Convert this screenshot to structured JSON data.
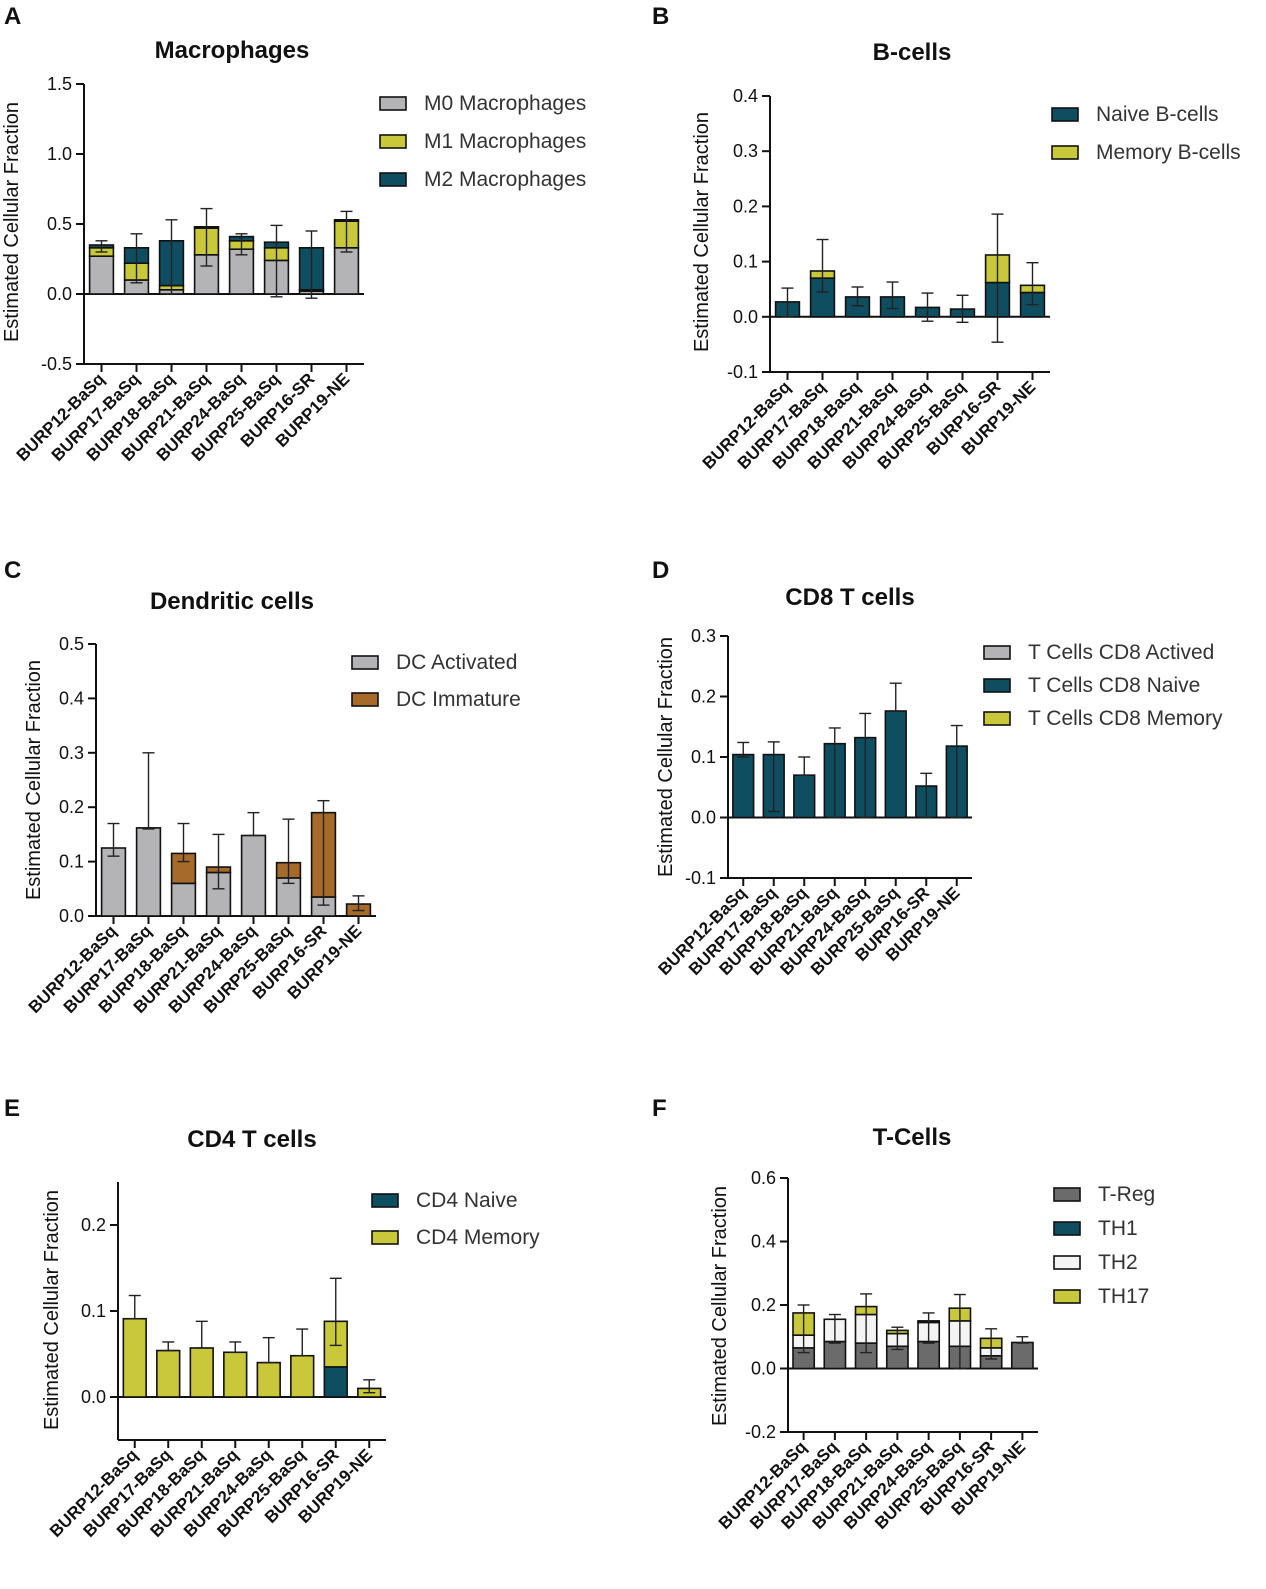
{
  "categories": [
    "BURP12-BaSq",
    "BURP17-BaSq",
    "BURP18-BaSq",
    "BURP21-BaSq",
    "BURP24-BaSq",
    "BURP25-BaSq",
    "BURP16-SR",
    "BURP19-NE"
  ],
  "colors": {
    "gray": "#b4b4b6",
    "yellow": "#c8c83a",
    "teal": "#0f4d60",
    "brown": "#a66a2a",
    "darkgray": "#6b6b6b",
    "white": "#f4f4f4"
  },
  "chart_data": [
    {
      "panel": "A",
      "type": "bar",
      "stacked": true,
      "title": "Macrophages",
      "ylabel": "Estimated Cellular Fraction",
      "xlabel": "",
      "ylim": [
        -0.5,
        1.5
      ],
      "yticks": [
        -0.5,
        0.0,
        0.5,
        1.0,
        1.5
      ],
      "tick_labels": [
        "-0.5",
        "0.0",
        "0.5",
        "1.0",
        "1.5"
      ],
      "legend_position": "top-right",
      "series": [
        {
          "name": "M0 Macrophages",
          "color": "#b4b4b6",
          "values": [
            0.27,
            0.1,
            0.03,
            0.28,
            0.32,
            0.24,
            0.02,
            0.33
          ]
        },
        {
          "name": "M1 Macrophages",
          "color": "#c8c83a",
          "values": [
            0.06,
            0.12,
            0.03,
            0.19,
            0.06,
            0.09,
            0.01,
            0.19
          ]
        },
        {
          "name": "M2 Macrophages",
          "color": "#0f4d60",
          "values": [
            0.02,
            0.11,
            0.32,
            0.01,
            0.03,
            0.04,
            0.3,
            0.01
          ]
        }
      ],
      "error_high": [
        0.38,
        0.43,
        0.53,
        0.61,
        0.43,
        0.49,
        0.45,
        0.59
      ],
      "error_low": [
        0.3,
        0.08,
        0.0,
        0.2,
        0.28,
        -0.02,
        -0.03,
        0.3
      ]
    },
    {
      "panel": "B",
      "type": "bar",
      "stacked": true,
      "title": "B-cells",
      "ylabel": "Estimated Cellular Fraction",
      "xlabel": "",
      "ylim": [
        -0.1,
        0.4
      ],
      "yticks": [
        -0.1,
        0.0,
        0.1,
        0.2,
        0.3,
        0.4
      ],
      "tick_labels": [
        "-0.1",
        "0.0",
        "0.1",
        "0.2",
        "0.3",
        "0.4"
      ],
      "legend_position": "top-right",
      "series": [
        {
          "name": "Naive B-cells",
          "color": "#0f4d60",
          "values": [
            0.027,
            0.07,
            0.036,
            0.036,
            0.017,
            0.014,
            0.062,
            0.044
          ]
        },
        {
          "name": "Memory B-cells",
          "color": "#c8c83a",
          "values": [
            0.0,
            0.013,
            0.0,
            0.0,
            0.0,
            0.0,
            0.05,
            0.013
          ]
        }
      ],
      "error_high": [
        0.052,
        0.14,
        0.054,
        0.063,
        0.043,
        0.039,
        0.186,
        0.098
      ],
      "error_low": [
        0.0,
        0.045,
        0.02,
        0.015,
        -0.008,
        -0.01,
        -0.046,
        0.022
      ]
    },
    {
      "panel": "C",
      "type": "bar",
      "stacked": true,
      "title": "Dendritic cells",
      "ylabel": "Estimated Cellular Fraction",
      "xlabel": "",
      "ylim": [
        0.0,
        0.5
      ],
      "yticks": [
        0.0,
        0.1,
        0.2,
        0.3,
        0.4,
        0.5
      ],
      "tick_labels": [
        "0.0",
        "0.1",
        "0.2",
        "0.3",
        "0.4",
        "0.5"
      ],
      "legend_position": "top-right",
      "series": [
        {
          "name": "DC Activated",
          "color": "#b4b4b6",
          "values": [
            0.125,
            0.162,
            0.06,
            0.08,
            0.148,
            0.07,
            0.035,
            0.0
          ]
        },
        {
          "name": "DC Immature",
          "color": "#a66a2a",
          "values": [
            0.0,
            0.0,
            0.055,
            0.01,
            0.0,
            0.028,
            0.155,
            0.022
          ]
        }
      ],
      "error_high": [
        0.17,
        0.3,
        0.17,
        0.15,
        0.19,
        0.178,
        0.212,
        0.037
      ],
      "error_low": [
        0.11,
        0.16,
        0.1,
        0.05,
        0.148,
        0.06,
        0.02,
        0.01
      ]
    },
    {
      "panel": "D",
      "type": "bar",
      "stacked": true,
      "title": "CD8  T cells",
      "ylabel": "Estimated Cellular Fraction",
      "xlabel": "",
      "ylim": [
        -0.1,
        0.3
      ],
      "yticks": [
        -0.1,
        0.0,
        0.1,
        0.2,
        0.3
      ],
      "tick_labels": [
        "-0.1",
        "0.0",
        "0.1",
        "0.2",
        "0.3"
      ],
      "legend_position": "top-right",
      "series": [
        {
          "name": "T Cells CD8 Actived",
          "color": "#b4b4b6",
          "values": [
            0,
            0,
            0,
            0,
            0,
            0,
            0,
            0
          ]
        },
        {
          "name": "T Cells CD8 Naive",
          "color": "#0f4d60",
          "values": [
            0.104,
            0.104,
            0.07,
            0.122,
            0.132,
            0.176,
            0.052,
            0.118
          ]
        },
        {
          "name": "T Cells CD8 Memory",
          "color": "#c8c83a",
          "values": [
            0,
            0,
            0,
            0,
            0,
            0,
            0,
            0
          ]
        }
      ],
      "error_high": [
        0.124,
        0.125,
        0.1,
        0.148,
        0.172,
        0.222,
        0.073,
        0.152
      ],
      "error_low": [
        0.1,
        0.01,
        0.07,
        0.0,
        0.0,
        0.176,
        0.0,
        0.0
      ]
    },
    {
      "panel": "E",
      "type": "bar",
      "stacked": true,
      "title": "CD4 T cells",
      "ylabel": "Estimated Cellular Fraction",
      "xlabel": "",
      "ylim": [
        -0.05,
        0.25
      ],
      "yticks": [
        0.0,
        0.1,
        0.2
      ],
      "tick_labels": [
        "0.0",
        "0.1",
        "0.2"
      ],
      "legend_position": "top-right",
      "series": [
        {
          "name": "CD4 Naive",
          "color": "#0f4d60",
          "values": [
            0,
            0,
            0,
            0,
            0,
            0,
            0.035,
            0
          ]
        },
        {
          "name": "CD4 Memory",
          "color": "#c8c83a",
          "values": [
            0.091,
            0.054,
            0.057,
            0.052,
            0.04,
            0.048,
            0.053,
            0.01
          ]
        }
      ],
      "error_high": [
        0.118,
        0.064,
        0.088,
        0.064,
        0.069,
        0.079,
        0.138,
        0.02
      ],
      "error_low": [
        0.091,
        0.054,
        0.057,
        0.052,
        0.04,
        0.048,
        0.06,
        0.005
      ]
    },
    {
      "panel": "F",
      "type": "bar",
      "stacked": true,
      "title": "T-Cells",
      "ylabel": "Estimated Cellular Fraction",
      "xlabel": "",
      "ylim": [
        -0.2,
        0.6
      ],
      "yticks": [
        -0.2,
        0.0,
        0.2,
        0.4,
        0.6
      ],
      "tick_labels": [
        "-0.2",
        "0.0",
        "0.2",
        "0.4",
        "0.6"
      ],
      "legend_position": "top-right",
      "series": [
        {
          "name": "T-Reg",
          "color": "#6b6b6b",
          "values": [
            0.065,
            0.085,
            0.08,
            0.07,
            0.085,
            0.07,
            0.04,
            0.082
          ]
        },
        {
          "name": "TH1",
          "color": "#0f4d60",
          "values": [
            0.0,
            0.0,
            0.0,
            0.0,
            0.0,
            0.0,
            0.0,
            0.0
          ]
        },
        {
          "name": "TH2",
          "color": "#f4f4f4",
          "values": [
            0.04,
            0.07,
            0.09,
            0.04,
            0.06,
            0.08,
            0.025,
            0.0
          ]
        },
        {
          "name": "TH17",
          "color": "#c8c83a",
          "values": [
            0.07,
            0.0,
            0.025,
            0.01,
            0.005,
            0.04,
            0.03,
            0.0
          ]
        }
      ],
      "error_high": [
        0.2,
        0.17,
        0.235,
        0.13,
        0.175,
        0.233,
        0.125,
        0.1
      ],
      "error_low": [
        0.05,
        0.08,
        0.05,
        0.06,
        0.08,
        0.0,
        0.03,
        0.08
      ]
    }
  ]
}
